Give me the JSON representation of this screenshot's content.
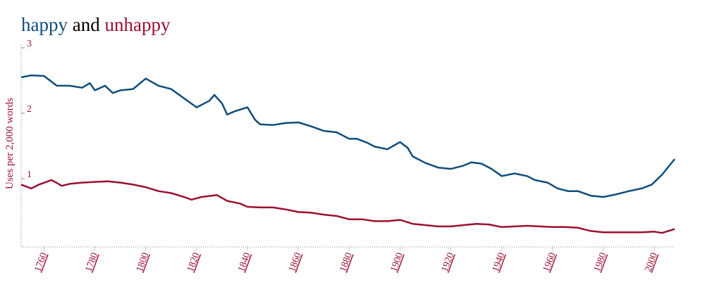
{
  "chart_data": {
    "type": "line",
    "title_conjunction": "and",
    "ylabel": "Uses per 2,000 words",
    "xlim": [
      1751,
      2008
    ],
    "ylim": [
      0,
      3
    ],
    "xticks": [
      1760,
      1780,
      1800,
      1820,
      1840,
      1860,
      1880,
      1900,
      1920,
      1940,
      1960,
      1980,
      2000
    ],
    "yticks": [
      1,
      2,
      3
    ],
    "axis_color": "#9b1030",
    "series": [
      {
        "name": "happy",
        "color": "#0f4c7c",
        "x": [
          1751,
          1755,
          1760,
          1765,
          1770,
          1775,
          1778,
          1780,
          1784,
          1787,
          1790,
          1795,
          1800,
          1805,
          1810,
          1815,
          1820,
          1825,
          1827,
          1830,
          1832,
          1835,
          1840,
          1843,
          1845,
          1850,
          1855,
          1860,
          1865,
          1870,
          1875,
          1880,
          1883,
          1887,
          1890,
          1895,
          1900,
          1903,
          1905,
          1910,
          1915,
          1920,
          1925,
          1928,
          1932,
          1936,
          1940,
          1945,
          1950,
          1953,
          1958,
          1962,
          1966,
          1970,
          1975,
          1980,
          1985,
          1990,
          1995,
          1999,
          2003,
          2008
        ],
        "values": [
          2.55,
          2.58,
          2.57,
          2.42,
          2.42,
          2.39,
          2.46,
          2.35,
          2.42,
          2.31,
          2.35,
          2.37,
          2.53,
          2.42,
          2.37,
          2.23,
          2.09,
          2.19,
          2.28,
          2.15,
          1.98,
          2.03,
          2.09,
          1.9,
          1.83,
          1.82,
          1.85,
          1.86,
          1.8,
          1.73,
          1.71,
          1.61,
          1.61,
          1.55,
          1.49,
          1.45,
          1.56,
          1.47,
          1.34,
          1.24,
          1.17,
          1.15,
          1.2,
          1.25,
          1.23,
          1.15,
          1.04,
          1.08,
          1.04,
          0.98,
          0.94,
          0.85,
          0.81,
          0.81,
          0.74,
          0.72,
          0.76,
          0.81,
          0.85,
          0.91,
          1.06,
          1.3
        ]
      },
      {
        "name": "unhappy",
        "color": "#9b1030",
        "x": [
          1751,
          1755,
          1758,
          1763,
          1767,
          1770,
          1775,
          1780,
          1785,
          1790,
          1795,
          1800,
          1805,
          1810,
          1815,
          1818,
          1822,
          1828,
          1832,
          1837,
          1840,
          1845,
          1850,
          1855,
          1860,
          1865,
          1870,
          1875,
          1880,
          1885,
          1890,
          1895,
          1900,
          1905,
          1910,
          1915,
          1920,
          1925,
          1930,
          1935,
          1940,
          1945,
          1950,
          1955,
          1960,
          1965,
          1970,
          1975,
          1980,
          1990,
          1995,
          2000,
          2003,
          2008
        ],
        "values": [
          0.91,
          0.85,
          0.91,
          0.98,
          0.89,
          0.92,
          0.94,
          0.95,
          0.96,
          0.94,
          0.91,
          0.87,
          0.81,
          0.78,
          0.72,
          0.68,
          0.72,
          0.75,
          0.66,
          0.62,
          0.57,
          0.56,
          0.56,
          0.53,
          0.49,
          0.48,
          0.45,
          0.43,
          0.38,
          0.38,
          0.35,
          0.35,
          0.37,
          0.31,
          0.29,
          0.27,
          0.27,
          0.29,
          0.31,
          0.3,
          0.26,
          0.27,
          0.28,
          0.27,
          0.26,
          0.26,
          0.25,
          0.2,
          0.18,
          0.18,
          0.18,
          0.19,
          0.17,
          0.23
        ]
      }
    ]
  }
}
